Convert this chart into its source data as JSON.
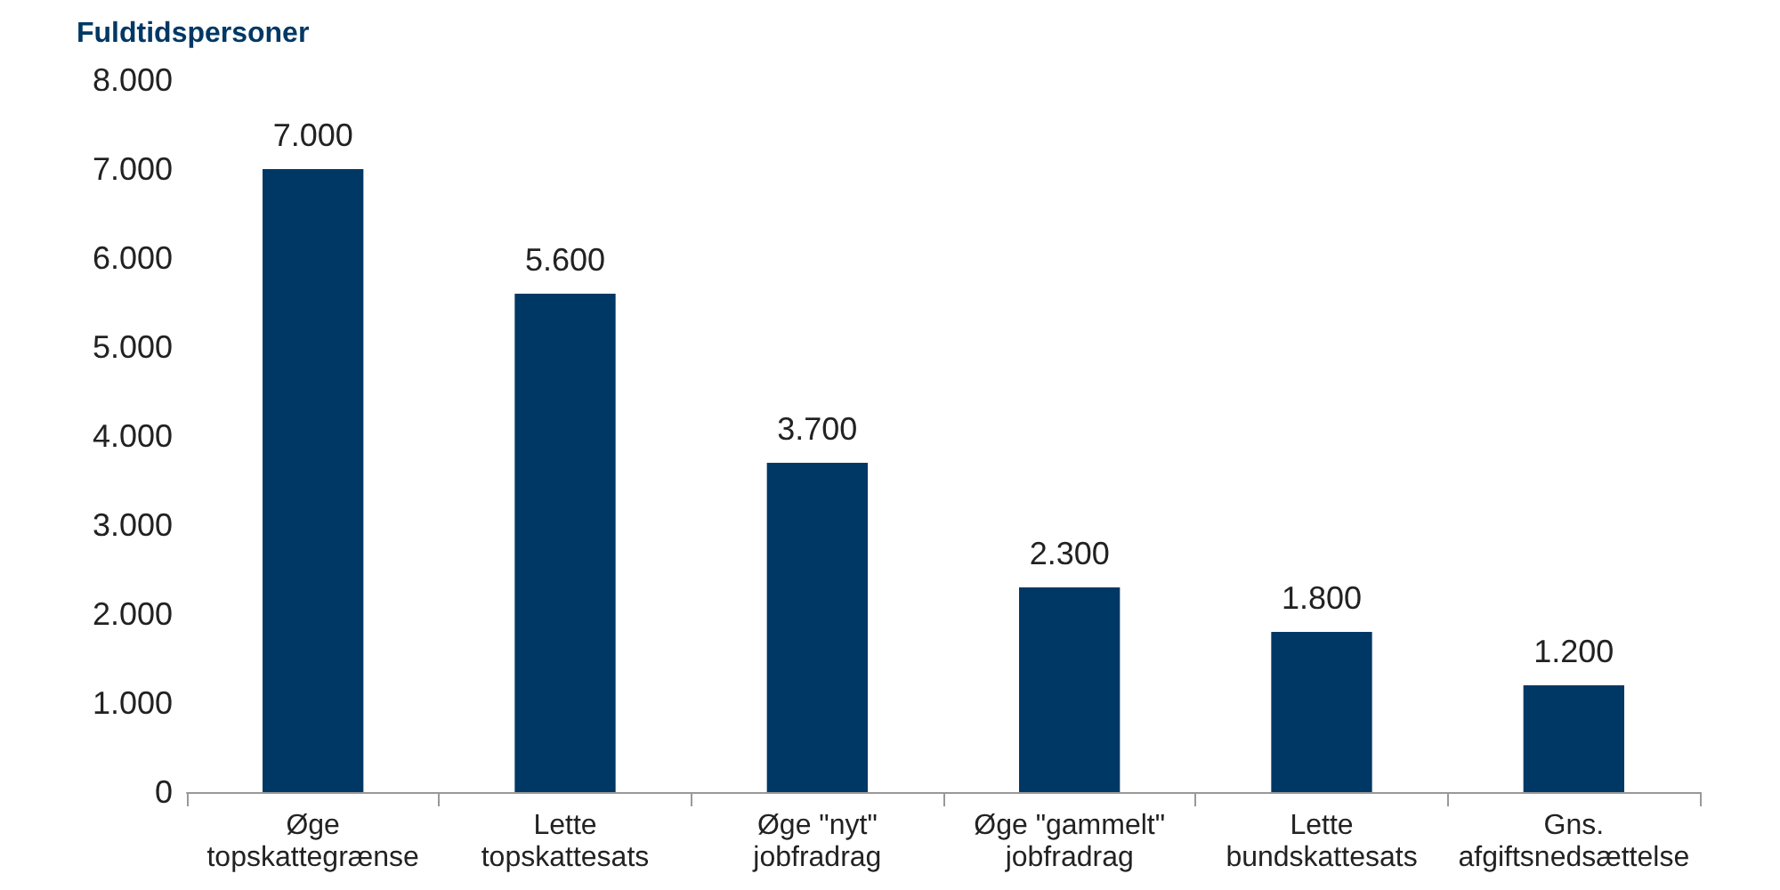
{
  "chart_data": {
    "type": "bar",
    "ylabel": "Fuldtidspersoner",
    "categories": [
      "Øge\ntopskattegrænse",
      "Lette\ntopskattesats",
      "Øge \"nyt\"\njobfradrag",
      "Øge \"gammelt\"\njobfradrag",
      "Lette\nbundskattesats",
      "Gns.\nafgiftsnedsættelse"
    ],
    "values": [
      7000,
      5600,
      3700,
      2300,
      1800,
      1200
    ],
    "value_labels": [
      "7.000",
      "5.600",
      "3.700",
      "2.300",
      "1.800",
      "1.200"
    ],
    "color": "#003865",
    "ylim": [
      0,
      8000
    ],
    "yticks": [
      {
        "value": 0,
        "label": "0"
      },
      {
        "value": 1000,
        "label": "1.000"
      },
      {
        "value": 2000,
        "label": "2.000"
      },
      {
        "value": 3000,
        "label": "3.000"
      },
      {
        "value": 4000,
        "label": "4.000"
      },
      {
        "value": 5000,
        "label": "5.000"
      },
      {
        "value": 6000,
        "label": "6.000"
      },
      {
        "value": 7000,
        "label": "7.000"
      },
      {
        "value": 8000,
        "label": "8.000"
      }
    ],
    "grid": false
  }
}
